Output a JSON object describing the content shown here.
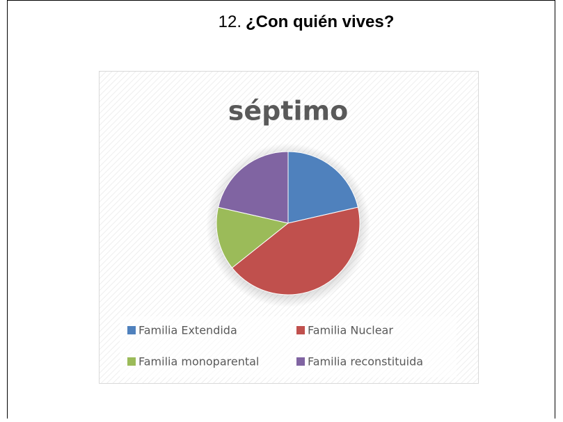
{
  "heading": {
    "number": "12.",
    "text": "¿Con quién vives?"
  },
  "chart_data": {
    "type": "pie",
    "title": "séptimo",
    "categories": [
      "Familia Extendida",
      "Familia Nuclear",
      "Familia monoparental",
      "Familia reconstituida"
    ],
    "values": [
      3,
      6,
      2,
      3
    ],
    "colors": [
      "#4f81bd",
      "#c0504d",
      "#9bbb59",
      "#8064a2"
    ],
    "legend": "bottom"
  }
}
